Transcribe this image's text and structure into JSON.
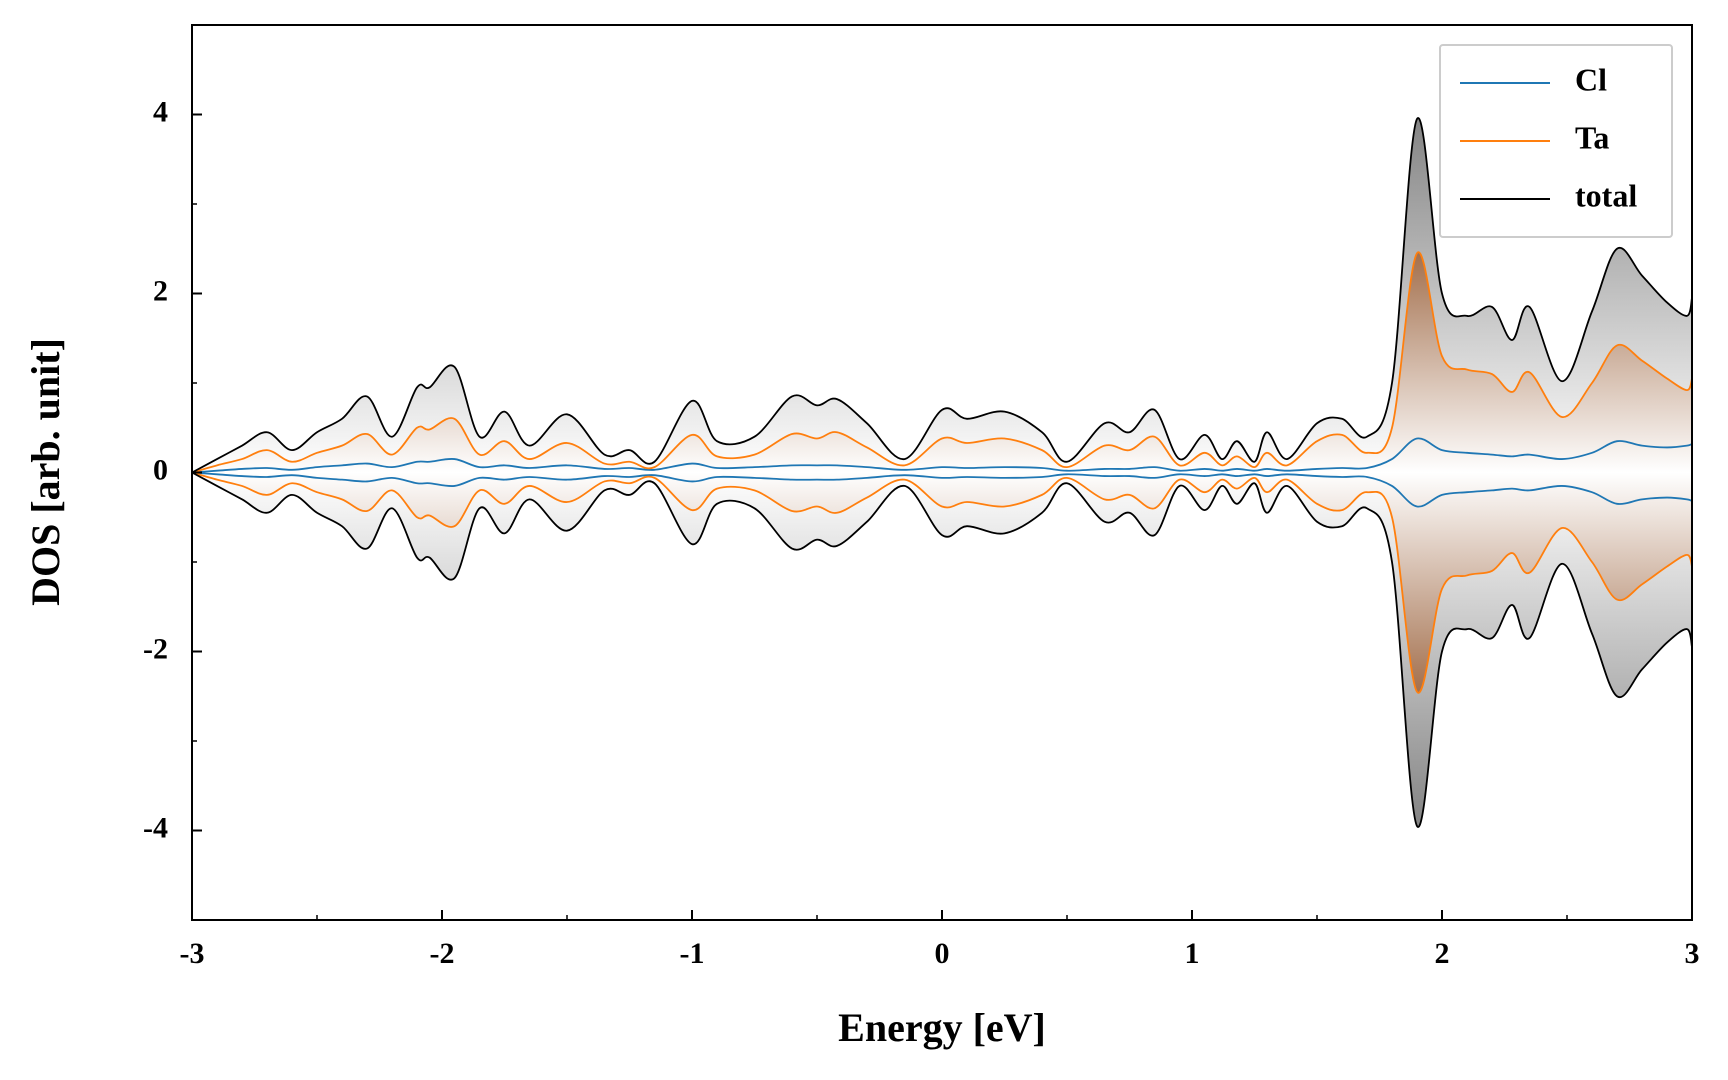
{
  "chart_data": {
    "type": "line",
    "xlabel": "Energy [eV]",
    "ylabel": "DOS [arb. unit]",
    "xlim": [
      -3,
      3
    ],
    "ylim": [
      -5,
      5
    ],
    "xticks": [
      -3,
      -2,
      -1,
      0,
      1,
      2,
      3
    ],
    "yticks": [
      -4,
      -2,
      0,
      2,
      4
    ],
    "xminorticks": [
      -2.5,
      -1.5,
      -0.5,
      0.5,
      1.5,
      2.5
    ],
    "yminorticks": [
      -3,
      -1,
      1,
      3
    ],
    "legend": "upper right",
    "x": [
      -3,
      -2.9,
      -2.8,
      -2.7,
      -2.6,
      -2.5,
      -2.4,
      -2.3,
      -2.2,
      -2.1,
      -2.05,
      -1.95,
      -1.85,
      -1.75,
      -1.65,
      -1.5,
      -1.35,
      -1.25,
      -1.15,
      -1.0,
      -0.9,
      -0.75,
      -0.6,
      -0.5,
      -0.42,
      -0.3,
      -0.15,
      0,
      0.1,
      0.25,
      0.4,
      0.5,
      0.65,
      0.75,
      0.85,
      0.95,
      1.05,
      1.12,
      1.18,
      1.25,
      1.3,
      1.38,
      1.5,
      1.6,
      1.7,
      1.8,
      1.9,
      2.0,
      2.1,
      2.2,
      2.28,
      2.35,
      2.48,
      2.6,
      2.7,
      2.8,
      2.9,
      2.98,
      3
    ],
    "series": [
      {
        "name": "Cl",
        "color": "#1f77b4",
        "values": [
          0,
          0.02,
          0.04,
          0.05,
          0.03,
          0.06,
          0.08,
          0.1,
          0.06,
          0.12,
          0.12,
          0.15,
          0.06,
          0.08,
          0.05,
          0.08,
          0.04,
          0.05,
          0.03,
          0.1,
          0.05,
          0.06,
          0.08,
          0.08,
          0.08,
          0.06,
          0.03,
          0.06,
          0.05,
          0.06,
          0.05,
          0.02,
          0.04,
          0.04,
          0.06,
          0.02,
          0.04,
          0.02,
          0.04,
          0.02,
          0.04,
          0.02,
          0.04,
          0.05,
          0.05,
          0.15,
          0.38,
          0.25,
          0.22,
          0.2,
          0.18,
          0.2,
          0.15,
          0.22,
          0.35,
          0.3,
          0.28,
          0.3,
          0.32
        ],
        "values_down": [
          0,
          -0.02,
          -0.04,
          -0.05,
          -0.03,
          -0.06,
          -0.08,
          -0.1,
          -0.06,
          -0.12,
          -0.12,
          -0.15,
          -0.06,
          -0.08,
          -0.05,
          -0.08,
          -0.04,
          -0.05,
          -0.03,
          -0.1,
          -0.05,
          -0.06,
          -0.08,
          -0.08,
          -0.08,
          -0.06,
          -0.03,
          -0.06,
          -0.05,
          -0.06,
          -0.05,
          -0.02,
          -0.04,
          -0.04,
          -0.06,
          -0.02,
          -0.04,
          -0.02,
          -0.04,
          -0.02,
          -0.04,
          -0.02,
          -0.04,
          -0.05,
          -0.05,
          -0.15,
          -0.38,
          -0.25,
          -0.22,
          -0.2,
          -0.18,
          -0.2,
          -0.15,
          -0.22,
          -0.35,
          -0.3,
          -0.28,
          -0.3,
          -0.32
        ]
      },
      {
        "name": "Ta",
        "color": "#ff7f0e",
        "values": [
          0,
          0.08,
          0.15,
          0.25,
          0.12,
          0.22,
          0.3,
          0.43,
          0.2,
          0.5,
          0.48,
          0.6,
          0.2,
          0.35,
          0.15,
          0.33,
          0.1,
          0.12,
          0.06,
          0.42,
          0.18,
          0.2,
          0.43,
          0.38,
          0.45,
          0.28,
          0.08,
          0.38,
          0.33,
          0.38,
          0.25,
          0.06,
          0.3,
          0.25,
          0.4,
          0.08,
          0.22,
          0.08,
          0.18,
          0.06,
          0.22,
          0.08,
          0.35,
          0.42,
          0.22,
          0.5,
          2.45,
          1.3,
          1.15,
          1.1,
          0.9,
          1.12,
          0.62,
          1.0,
          1.42,
          1.25,
          1.05,
          0.92,
          1.05
        ],
        "values_down": [
          0,
          -0.08,
          -0.15,
          -0.25,
          -0.12,
          -0.22,
          -0.3,
          -0.43,
          -0.2,
          -0.5,
          -0.48,
          -0.6,
          -0.2,
          -0.35,
          -0.15,
          -0.33,
          -0.1,
          -0.12,
          -0.06,
          -0.42,
          -0.18,
          -0.2,
          -0.43,
          -0.38,
          -0.45,
          -0.28,
          -0.08,
          -0.38,
          -0.33,
          -0.38,
          -0.25,
          -0.06,
          -0.3,
          -0.25,
          -0.4,
          -0.08,
          -0.22,
          -0.08,
          -0.18,
          -0.06,
          -0.22,
          -0.08,
          -0.35,
          -0.42,
          -0.22,
          -0.5,
          -2.45,
          -1.3,
          -1.15,
          -1.1,
          -0.9,
          -1.12,
          -0.62,
          -1.0,
          -1.42,
          -1.25,
          -1.05,
          -0.92,
          -1.05
        ]
      },
      {
        "name": "total",
        "color": "#000000",
        "values": [
          0,
          0.15,
          0.3,
          0.45,
          0.25,
          0.45,
          0.6,
          0.85,
          0.4,
          0.95,
          0.95,
          1.18,
          0.4,
          0.68,
          0.3,
          0.65,
          0.2,
          0.25,
          0.12,
          0.8,
          0.35,
          0.4,
          0.85,
          0.75,
          0.82,
          0.55,
          0.15,
          0.7,
          0.6,
          0.68,
          0.45,
          0.12,
          0.55,
          0.45,
          0.7,
          0.15,
          0.42,
          0.15,
          0.35,
          0.12,
          0.45,
          0.15,
          0.55,
          0.6,
          0.4,
          1.0,
          3.95,
          2.0,
          1.75,
          1.85,
          1.48,
          1.85,
          1.02,
          1.8,
          2.5,
          2.2,
          1.9,
          1.75,
          1.95
        ],
        "values_down": [
          0,
          -0.15,
          -0.3,
          -0.45,
          -0.25,
          -0.45,
          -0.6,
          -0.85,
          -0.4,
          -0.95,
          -0.95,
          -1.18,
          -0.4,
          -0.68,
          -0.3,
          -0.65,
          -0.2,
          -0.25,
          -0.12,
          -0.8,
          -0.35,
          -0.4,
          -0.85,
          -0.75,
          -0.82,
          -0.55,
          -0.15,
          -0.7,
          -0.6,
          -0.68,
          -0.45,
          -0.12,
          -0.55,
          -0.45,
          -0.7,
          -0.15,
          -0.42,
          -0.15,
          -0.35,
          -0.12,
          -0.45,
          -0.15,
          -0.55,
          -0.6,
          -0.4,
          -1.0,
          -3.95,
          -2.0,
          -1.75,
          -1.85,
          -1.48,
          -1.85,
          -1.02,
          -1.8,
          -2.5,
          -2.2,
          -1.9,
          -1.75,
          -1.95
        ]
      }
    ]
  }
}
